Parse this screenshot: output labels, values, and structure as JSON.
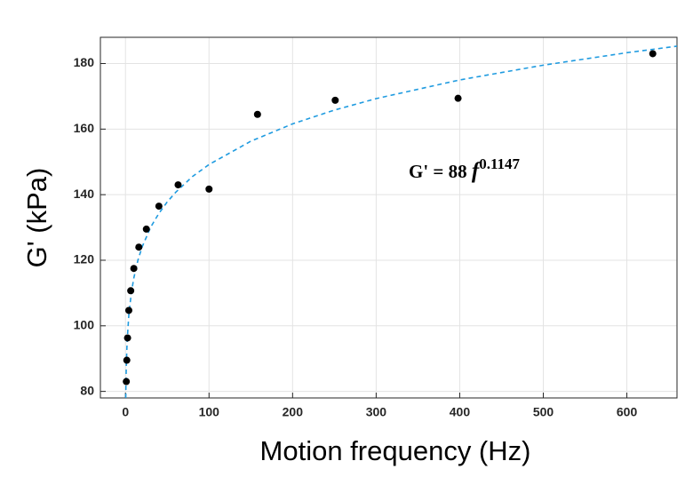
{
  "chart_data": {
    "type": "scatter",
    "x_label": "Motion frequency (Hz)",
    "y_label": "G' (kPa)",
    "x": [
      1,
      1.6,
      2.5,
      4,
      6.3,
      10,
      16,
      25,
      40,
      63,
      100,
      158,
      251,
      398,
      631
    ],
    "values": [
      83,
      89.5,
      96.3,
      104.7,
      110.7,
      117.5,
      124,
      129.5,
      136.5,
      143,
      141.7,
      164.5,
      168.8,
      169.4,
      183
    ],
    "color": "#000000",
    "fit": {
      "x": [
        0.35,
        0.5,
        1,
        2,
        4,
        7,
        10,
        15,
        20,
        30,
        40,
        50,
        60,
        80,
        100,
        150,
        200,
        250,
        300,
        400,
        500,
        600,
        660
      ],
      "values": [
        78.0,
        81.3,
        88,
        95.3,
        103.2,
        110.0,
        114.6,
        120.1,
        124.1,
        130.0,
        134.3,
        137.8,
        140.7,
        145.5,
        149.2,
        156.3,
        161.6,
        165.8,
        169.3,
        175.0,
        179.5,
        183.3,
        185.3
      ],
      "color": "#1f9be0",
      "dashed": true
    },
    "annotation": {
      "prefix": "G' = 88 ",
      "variable": "f",
      "exponent": "0.1147"
    },
    "xlim": [
      -30,
      660
    ],
    "ylim": [
      78,
      188
    ],
    "xticks": [
      0,
      100,
      200,
      300,
      400,
      500,
      600
    ],
    "yticks": [
      80,
      100,
      120,
      140,
      160,
      180
    ],
    "grid": true
  }
}
